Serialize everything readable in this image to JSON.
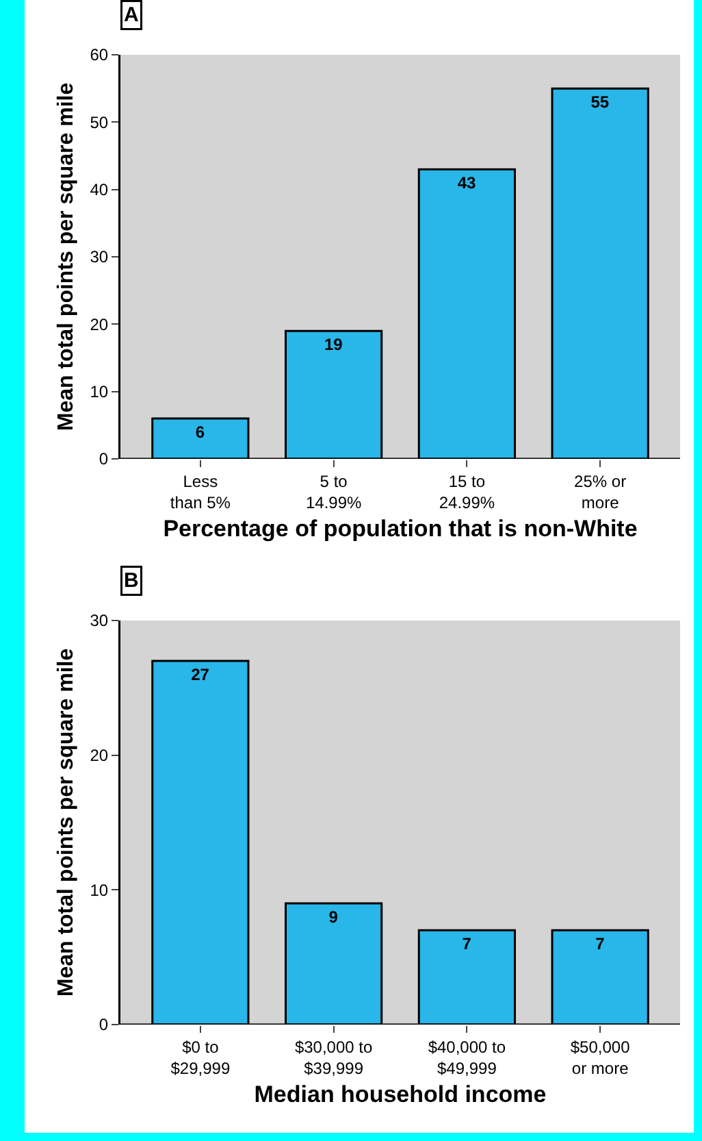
{
  "chart_data": [
    {
      "type": "bar",
      "annotations": [
        "A"
      ],
      "xlabel": "Percentage of population that is non-White",
      "ylabel": "Mean total points per square mile",
      "categories": [
        "Less\nthan 5%",
        "5 to\n14.99%",
        "15 to\n24.99%",
        "25% or\nmore"
      ],
      "values": [
        6,
        19,
        43,
        55
      ],
      "color": "#29b6e8",
      "ylim": [
        0,
        60
      ],
      "yticks": [
        0,
        10,
        20,
        30,
        40,
        50,
        60
      ],
      "data_labels": true,
      "grid": false,
      "legend": false
    },
    {
      "type": "bar",
      "annotations": [
        "B"
      ],
      "xlabel": "Median household income",
      "ylabel": "Mean total points per square mile",
      "categories": [
        "$0 to\n$29,999",
        "$30,000 to\n$39,999",
        "$40,000 to\n$49,999",
        "$50,000\nor more"
      ],
      "values": [
        27,
        9,
        7,
        7
      ],
      "color": "#29b6e8",
      "ylim": [
        0,
        30
      ],
      "yticks": [
        0,
        10,
        20,
        30
      ],
      "data_labels": true,
      "grid": false,
      "legend": false
    }
  ]
}
